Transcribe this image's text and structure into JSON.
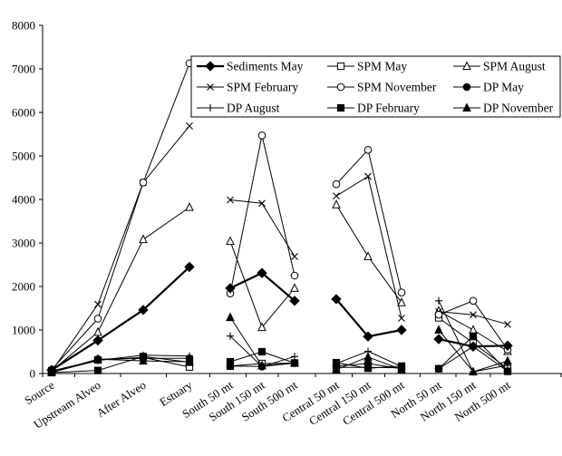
{
  "chart_data": {
    "type": "line",
    "title": "",
    "xlabel": "",
    "ylabel": "",
    "ylim": [
      0,
      8000
    ],
    "yticks": [
      0,
      1000,
      2000,
      3000,
      4000,
      5000,
      6000,
      7000,
      8000
    ],
    "grid": false,
    "legend_position": "top-right",
    "groups": [
      [
        "Source",
        "Upstream Alveo",
        "After Alveo",
        "Estuary"
      ],
      [
        "South 50 mt",
        "South 150 mt",
        "South 500 mt"
      ],
      [
        "Central 50 mt",
        "Central 150 mt",
        "Central 500 mt"
      ],
      [
        "North 50 mt",
        "North 150 mt",
        "North 500 mt"
      ]
    ],
    "categories": [
      "Source",
      "Upstream Alveo",
      "After Alveo",
      "Estuary",
      "South 50 mt",
      "South 150 mt",
      "South 500 mt",
      "Central 50 mt",
      "Central 150 mt",
      "Central 500 mt",
      "North 50 mt",
      "North 150 mt",
      "North 500 mt"
    ],
    "series": [
      {
        "name": "Sediments May",
        "marker": "diamond-filled",
        "bold": true,
        "values": [
          80,
          760,
          1460,
          2450,
          1960,
          2310,
          1670,
          1710,
          850,
          1000,
          790,
          620,
          640
        ]
      },
      {
        "name": "SPM May",
        "marker": "square-open",
        "values": [
          60,
          310,
          370,
          150,
          170,
          230,
          240,
          140,
          140,
          130,
          1280,
          700,
          110
        ]
      },
      {
        "name": "SPM August",
        "marker": "triangle-open",
        "values": [
          60,
          950,
          3080,
          3820,
          3040,
          1060,
          1960,
          3880,
          2690,
          1630,
          1440,
          1000,
          510
        ]
      },
      {
        "name": "SPM February",
        "marker": "x",
        "values": [
          50,
          1590,
          4390,
          5690,
          3990,
          3910,
          2690,
          4080,
          4530,
          1270,
          1420,
          1350,
          1130
        ]
      },
      {
        "name": "SPM November",
        "marker": "circle-open",
        "values": [
          90,
          1260,
          4390,
          7130,
          1840,
          5470,
          2250,
          4350,
          5140,
          1860,
          1350,
          1670,
          550
        ]
      },
      {
        "name": "DP May",
        "marker": "circle-filled",
        "values": [
          30,
          330,
          350,
          350,
          170,
          160,
          240,
          170,
          230,
          110,
          110,
          620,
          50
        ]
      },
      {
        "name": "DP August",
        "marker": "plus",
        "values": [
          30,
          300,
          420,
          400,
          860,
          160,
          390,
          230,
          510,
          160,
          1670,
          40,
          190
        ]
      },
      {
        "name": "DP February",
        "marker": "square-filled",
        "values": [
          20,
          70,
          390,
          260,
          270,
          500,
          240,
          250,
          120,
          170,
          110,
          860,
          50
        ]
      },
      {
        "name": "DP November",
        "marker": "triangle-filled",
        "values": [
          20,
          330,
          290,
          270,
          1290,
          180,
          240,
          90,
          380,
          90,
          1000,
          40,
          290
        ]
      }
    ]
  }
}
